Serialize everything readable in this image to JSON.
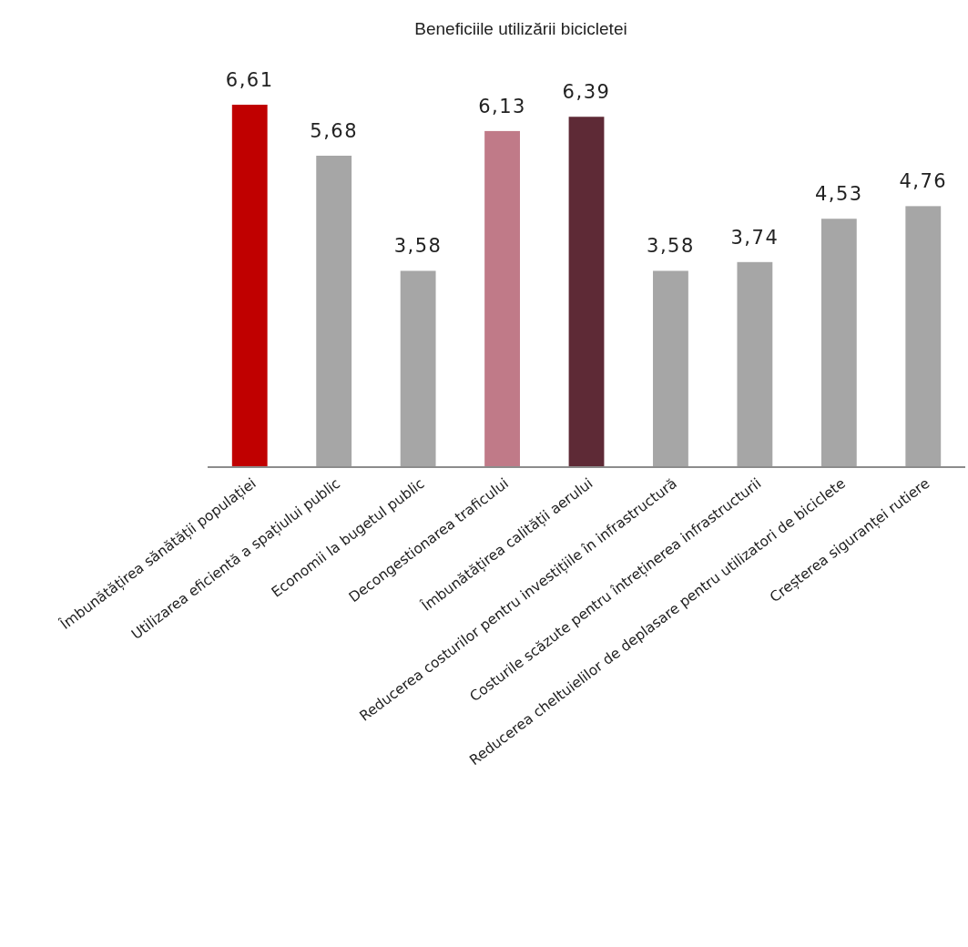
{
  "chart_data": {
    "type": "bar",
    "title": "Beneficiile utilizării bicicletei",
    "categories": [
      "Îmbunătățirea sănătății populației",
      "Utilizarea eficientă a spațiului public",
      "Economii la bugetul public",
      "Decongestionarea traficului",
      "Îmbunătățirea calității aerului",
      "Reducerea costurilor pentru investițiile în infrastructură",
      "Costurile scăzute pentru întreținerea infrastructurii",
      "Reducerea cheltuielilor de deplasare pentru utilizatori de biciclete",
      "Creșterea siguranței rutiere"
    ],
    "values": [
      6.61,
      5.68,
      3.58,
      6.13,
      6.39,
      3.58,
      3.74,
      4.53,
      4.76
    ],
    "value_labels": [
      "6,61",
      "5,68",
      "3,58",
      "6,13",
      "6,39",
      "3,58",
      "3,74",
      "4,53",
      "4,76"
    ],
    "colors": [
      "#c00000",
      "#a6a6a6",
      "#a6a6a6",
      "#c07a88",
      "#5e2a36",
      "#a6a6a6",
      "#a6a6a6",
      "#a6a6a6",
      "#a6a6a6"
    ]
  }
}
